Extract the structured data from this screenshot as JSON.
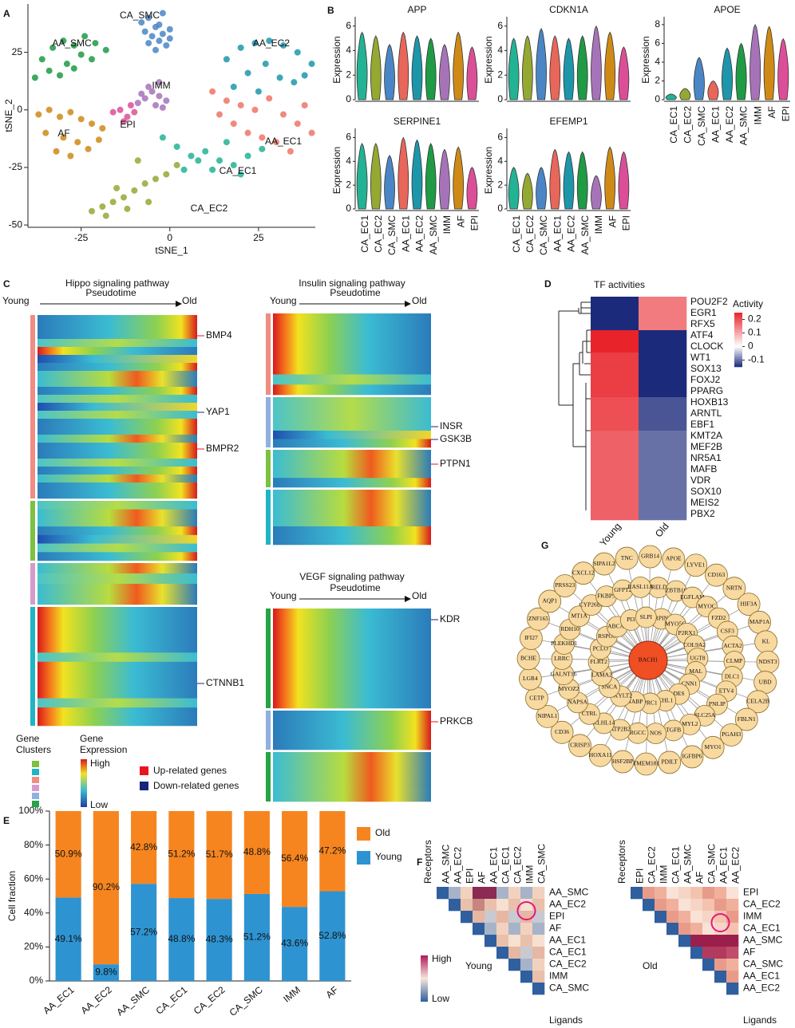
{
  "panel_labels": [
    "A",
    "B",
    "C",
    "D",
    "E",
    "F",
    "G"
  ],
  "cluster_colors": {
    "CA_EC1": "#22b395",
    "CA_EC2": "#95a832",
    "CA_SMC": "#4a86c5",
    "AA_EC1": "#e8665a",
    "AA_EC2": "#1d96aa",
    "AA_SMC": "#1f9a45",
    "IMM": "#a673b8",
    "AF": "#cf8a16",
    "EPI": "#dc4f98"
  },
  "chart_data": [
    {
      "type": "scatter",
      "xlabel": "tSNE_1",
      "ylabel": "tSNE_2",
      "xlim": [
        -40,
        41
      ],
      "ylim": [
        -51,
        46
      ],
      "xticks": [
        -25,
        0,
        25
      ],
      "yticks": [
        -50,
        -25,
        0,
        25
      ],
      "series": [
        {
          "name": "CA_SMC",
          "color": "#4a86c5",
          "x": [
            -8,
            -6,
            -4,
            -2,
            0,
            -5,
            -3,
            -1,
            -7,
            -4,
            -2,
            -6,
            0,
            -3
          ],
          "values": [
            38,
            40,
            36,
            42,
            35,
            32,
            30,
            28,
            34,
            26,
            33,
            29,
            31,
            37
          ]
        },
        {
          "name": "AA_SMC",
          "color": "#1f9a45",
          "x": [
            -36,
            -33,
            -30,
            -27,
            -24,
            -21,
            -18,
            -34,
            -29,
            -25,
            -31,
            -22,
            -38,
            -27
          ],
          "values": [
            22,
            27,
            30,
            28,
            32,
            29,
            26,
            17,
            20,
            24,
            15,
            22,
            14,
            18
          ]
        },
        {
          "name": "AA_EC2",
          "color": "#1d96aa",
          "x": [
            16,
            20,
            24,
            28,
            32,
            36,
            40,
            22,
            27,
            31,
            35,
            18,
            25,
            38
          ],
          "values": [
            22,
            27,
            29,
            30,
            28,
            25,
            20,
            16,
            20,
            14,
            12,
            10,
            8,
            15
          ]
        },
        {
          "name": "IMM",
          "color": "#a673b8",
          "x": [
            -9,
            -7,
            -5,
            -3,
            -1,
            -6,
            -4,
            -2,
            -8,
            -3
          ],
          "values": [
            3,
            5,
            8,
            6,
            4,
            10,
            2,
            1,
            7,
            12
          ]
        },
        {
          "name": "EPI",
          "color": "#dc4f98",
          "x": [
            -16,
            -14,
            -12,
            -10,
            -13,
            -11
          ],
          "values": [
            -1,
            0,
            -3,
            -1,
            -5,
            2
          ]
        },
        {
          "name": "AF",
          "color": "#cf8a16",
          "x": [
            -37,
            -34,
            -31,
            -28,
            -25,
            -22,
            -19,
            -35,
            -30,
            -26,
            -23,
            -32,
            -28,
            -20
          ],
          "values": [
            -2,
            0,
            -3,
            -1,
            -4,
            -6,
            -8,
            -10,
            -12,
            -14,
            -17,
            -18,
            -20,
            -13
          ]
        },
        {
          "name": "AA_EC1",
          "color": "#ef7466",
          "x": [
            12,
            16,
            20,
            24,
            28,
            32,
            36,
            40,
            18,
            26,
            30,
            34,
            22,
            38,
            14
          ],
          "values": [
            8,
            4,
            2,
            0,
            5,
            -2,
            -6,
            -10,
            -6,
            -12,
            -14,
            -18,
            -10,
            2,
            -2
          ]
        },
        {
          "name": "CA_EC1",
          "color": "#22b395",
          "x": [
            -2,
            2,
            6,
            10,
            14,
            18,
            22,
            26,
            4,
            12,
            20,
            8,
            16
          ],
          "values": [
            -12,
            -16,
            -20,
            -18,
            -22,
            -24,
            -20,
            -17,
            -26,
            -26,
            -28,
            -22,
            -14
          ]
        },
        {
          "name": "CA_EC2",
          "color": "#95a832",
          "x": [
            -22,
            -19,
            -16,
            -13,
            -10,
            -7,
            -4,
            -1,
            2,
            -18,
            -12,
            -6,
            -9,
            -15
          ],
          "values": [
            -44,
            -42,
            -40,
            -38,
            -35,
            -32,
            -30,
            -28,
            -24,
            -46,
            -43,
            -40,
            -22,
            -34
          ]
        }
      ]
    },
    {
      "type": "stacked_bar",
      "ylabel": "Cell fraction",
      "categories": [
        "AA_EC1",
        "AA_EC2",
        "AA_SMC",
        "CA_EC1",
        "CA_EC2",
        "CA_SMC",
        "IMM",
        "AF"
      ],
      "category_colors": [
        "#111111",
        "#d62728",
        "#111111",
        "#111111",
        "#111111",
        "#111111",
        "#111111",
        "#111111"
      ],
      "ylim": [
        0,
        100
      ],
      "yticks": [
        {
          "value": 0,
          "label": "0%"
        },
        {
          "value": 20,
          "label": "20%"
        },
        {
          "value": 40,
          "label": "40%"
        },
        {
          "value": 60,
          "label": "60%"
        },
        {
          "value": 80,
          "label": "80%"
        },
        {
          "value": 100,
          "label": "100%"
        }
      ],
      "legend": "right",
      "series": [
        {
          "name": "Young",
          "color": "#2e93d1",
          "values": [
            49.1,
            9.8,
            57.2,
            48.8,
            48.3,
            51.2,
            43.6,
            52.8
          ],
          "value_labels": [
            "49.1%",
            "9.8%",
            "57.2%",
            "48.8%",
            "48.3%",
            "51.2%",
            "43.6%",
            "52.8%"
          ]
        },
        {
          "name": "Old",
          "color": "#f6851f",
          "values": [
            50.9,
            90.2,
            42.8,
            51.2,
            51.7,
            48.8,
            56.4,
            47.2
          ],
          "value_labels": [
            "50.9%",
            "90.2%",
            "42.8%",
            "51.2%",
            "51.7%",
            "48.8%",
            "56.4%",
            "47.2%"
          ]
        }
      ]
    }
  ],
  "violins": {
    "categories": [
      "CA_EC1",
      "CA_EC2",
      "CA_SMC",
      "AA_EC1",
      "AA_EC2",
      "AA_SMC",
      "IMM",
      "AF",
      "EPI"
    ],
    "plots": [
      {
        "title": "APP",
        "ylabel": "Expression",
        "ylim": [
          0,
          6.5
        ],
        "yticks": [
          0,
          2,
          4,
          6
        ],
        "values": [
          5.5,
          5.2,
          4.5,
          5.5,
          5.2,
          5,
          4.5,
          5.5,
          4.3
        ]
      },
      {
        "title": "CDKN1A",
        "ylabel": "Expression",
        "ylim": [
          0,
          6.5
        ],
        "yticks": [
          0,
          2,
          4,
          6
        ],
        "values": [
          5,
          5.2,
          5.8,
          5.2,
          5,
          5.2,
          6,
          5.5,
          4.3
        ]
      },
      {
        "title": "APOE",
        "ylabel": "Expression",
        "ylim": [
          0,
          8.5
        ],
        "yticks": [
          0,
          2,
          4,
          6,
          8
        ],
        "values": [
          0.6,
          1.2,
          4.5,
          2,
          5.5,
          6,
          8,
          7.8,
          6.5
        ]
      },
      {
        "title": "SERPINE1",
        "ylabel": "Expression",
        "ylim": [
          0,
          6.5
        ],
        "yticks": [
          0,
          2,
          4,
          6
        ],
        "values": [
          5.5,
          5.5,
          4.5,
          6,
          5.8,
          5.5,
          5,
          5.2,
          3.5
        ]
      },
      {
        "title": "EFEMP1",
        "ylabel": "Expression",
        "ylim": [
          0,
          6.5
        ],
        "yticks": [
          0,
          2,
          4,
          6
        ],
        "values": [
          3.5,
          3,
          3.5,
          5,
          4.8,
          4.8,
          2.8,
          5.2,
          4.8
        ]
      }
    ]
  },
  "pathways": [
    {
      "title": "Hippo signaling pathway",
      "start": "Young",
      "axis": "Pseudotime",
      "end": "Old",
      "genes": [
        {
          "name": "BMP4",
          "color": "#e8141e"
        },
        {
          "name": "YAP1",
          "color": "#1a237e"
        },
        {
          "name": "BMPR2",
          "color": "#e8141e"
        },
        {
          "name": "CTNNB1",
          "color": "#1a237e"
        }
      ]
    },
    {
      "title": "Insulin signaling pathway",
      "start": "Young",
      "axis": "Pseudotime",
      "end": "Old",
      "genes": [
        {
          "name": "INSR",
          "color": "#1a237e"
        },
        {
          "name": "GSK3B",
          "color": "#1a237e"
        },
        {
          "name": "PTPN1",
          "color": "#e8141e"
        }
      ]
    },
    {
      "title": "VEGF signaling pathway",
      "start": "Young",
      "axis": "Pseudotime",
      "end": "Old",
      "genes": [
        {
          "name": "KDR",
          "color": "#1a237e"
        },
        {
          "name": "PRKCB",
          "color": "#e8141e"
        }
      ]
    }
  ],
  "pathway_legend": {
    "clusters": [
      "Gene",
      "Clusters"
    ],
    "expression": [
      "Gene",
      "Expression"
    ],
    "high": "High",
    "low": "Low",
    "up": "Up-related genes",
    "down": "Down-related genes",
    "up_color": "#e8141e",
    "down_color": "#1a237e",
    "swatches": [
      "#7cc142",
      "#1fb5c4",
      "#f08c82",
      "#d79acc",
      "#8fb0e0",
      "#27a348"
    ]
  },
  "tf": {
    "title": "TF activities",
    "legend_title": "Activity",
    "columns": [
      "Young",
      "Old"
    ],
    "scale": [
      -0.15,
      0.25
    ],
    "ticks": [
      0.2,
      0.1,
      0,
      -0.1
    ],
    "rows": [
      {
        "name": "POU2F2",
        "color": "#111111",
        "values": [
          -0.15,
          0.15
        ]
      },
      {
        "name": "EGR1",
        "color": "#111111",
        "values": [
          -0.15,
          0.15
        ]
      },
      {
        "name": "RFX5",
        "color": "#111111",
        "values": [
          -0.15,
          0.15
        ]
      },
      {
        "name": "ATF4",
        "color": "#e41a1c",
        "values": [
          0.25,
          -0.15
        ]
      },
      {
        "name": "CLOCK",
        "color": "#e41a1c",
        "values": [
          0.25,
          -0.15
        ]
      },
      {
        "name": "WT1",
        "color": "#111111",
        "values": [
          0.22,
          -0.17
        ]
      },
      {
        "name": "SOX13",
        "color": "#111111",
        "values": [
          0.22,
          -0.17
        ]
      },
      {
        "name": "FOXJ2",
        "color": "#111111",
        "values": [
          0.22,
          -0.17
        ]
      },
      {
        "name": "PPARG",
        "color": "#e41a1c",
        "values": [
          0.22,
          -0.15
        ]
      },
      {
        "name": "HOXB13",
        "color": "#111111",
        "values": [
          0.2,
          -0.12
        ]
      },
      {
        "name": "ARNTL",
        "color": "#e41a1c",
        "values": [
          0.2,
          -0.12
        ]
      },
      {
        "name": "EBF1",
        "color": "#111111",
        "values": [
          0.2,
          -0.12
        ]
      },
      {
        "name": "KMT2A",
        "color": "#111111",
        "values": [
          0.18,
          -0.1
        ]
      },
      {
        "name": "MEF2B",
        "color": "#111111",
        "values": [
          0.18,
          -0.1
        ]
      },
      {
        "name": "NR5A1",
        "color": "#111111",
        "values": [
          0.18,
          -0.1
        ]
      },
      {
        "name": "MAFB",
        "color": "#111111",
        "values": [
          0.18,
          -0.1
        ]
      },
      {
        "name": "VDR",
        "color": "#111111",
        "values": [
          0.18,
          -0.1
        ]
      },
      {
        "name": "SOX10",
        "color": "#111111",
        "values": [
          0.18,
          -0.1
        ]
      },
      {
        "name": "MEIS2",
        "color": "#111111",
        "values": [
          0.18,
          -0.1
        ]
      },
      {
        "name": "PBX2",
        "color": "#111111",
        "values": [
          0.18,
          -0.1
        ]
      }
    ]
  },
  "network": {
    "center": "BACH1",
    "outer": [
      "TNC",
      "GRB14",
      "APOE",
      "LYVE1",
      "CD163",
      "NRTN",
      "HIF3A",
      "MAP1A",
      "KL",
      "NDST3",
      "UBD",
      "CELA2B",
      "FBLN1",
      "PGAH3",
      "MYO1",
      "IGFBP6",
      "PDILT",
      "TMEM181",
      "HSF2BP",
      "HOXA11",
      "CRISP3",
      "CD36",
      "NIPAL1",
      "CETP",
      "LGR4",
      "BCHE",
      "IFI27",
      "ZNF165",
      "AQP1",
      "PRSS23",
      "CXCL12",
      "SIPA1L2"
    ],
    "middle": [
      "CRELD2",
      "ZBTB16",
      "EGFLAM",
      "MYOC",
      "FZD2",
      "CSF3",
      "ACTA2",
      "CLMP",
      "DLC1",
      "ETV4",
      "PNLIP",
      "SLC25A",
      "MYL2",
      "TGFB",
      "NOS",
      "RGCC",
      "ATP2B2",
      "KLHL14",
      "CTRL",
      "NAPSA",
      "MYOZ2",
      "GALNT16",
      "LRRC",
      "PLEKHD1",
      "RDH10",
      "MT1A",
      "CYP26B1",
      "FKBP5",
      "GFPT2",
      "RASL11A"
    ],
    "inner": [
      "SERPINA3",
      "MYO5C",
      "P2RX1",
      "COL9A2",
      "UGT8",
      "MAL",
      "CNN1",
      "DES",
      "CHL1",
      "PRC1",
      "NABP",
      "GXYLT2",
      "SNCA",
      "LAMA2",
      "FLRT2",
      "PCLO",
      "RSPO5",
      "ABCA8",
      "PI3",
      "SLPI"
    ]
  },
  "interactions": [
    {
      "title": "Young",
      "receptors": "Receptors",
      "ligands": "Ligands",
      "labels": [
        "AA_SMC",
        "AA_EC2",
        "EPI",
        "AF",
        "AA_EC1",
        "CA_EC1",
        "CA_EC2",
        "IMM",
        "CA_SMC"
      ]
    },
    {
      "title": "Old",
      "receptors": "Receptors",
      "ligands": "Ligands",
      "labels": [
        "EPI",
        "CA_EC2",
        "IMM",
        "CA_EC1",
        "AA_SMC",
        "AF",
        "CA_SMC",
        "AA_EC1",
        "AA_EC2"
      ]
    }
  ],
  "interactions_legend": {
    "high": "High",
    "low": "Low"
  }
}
